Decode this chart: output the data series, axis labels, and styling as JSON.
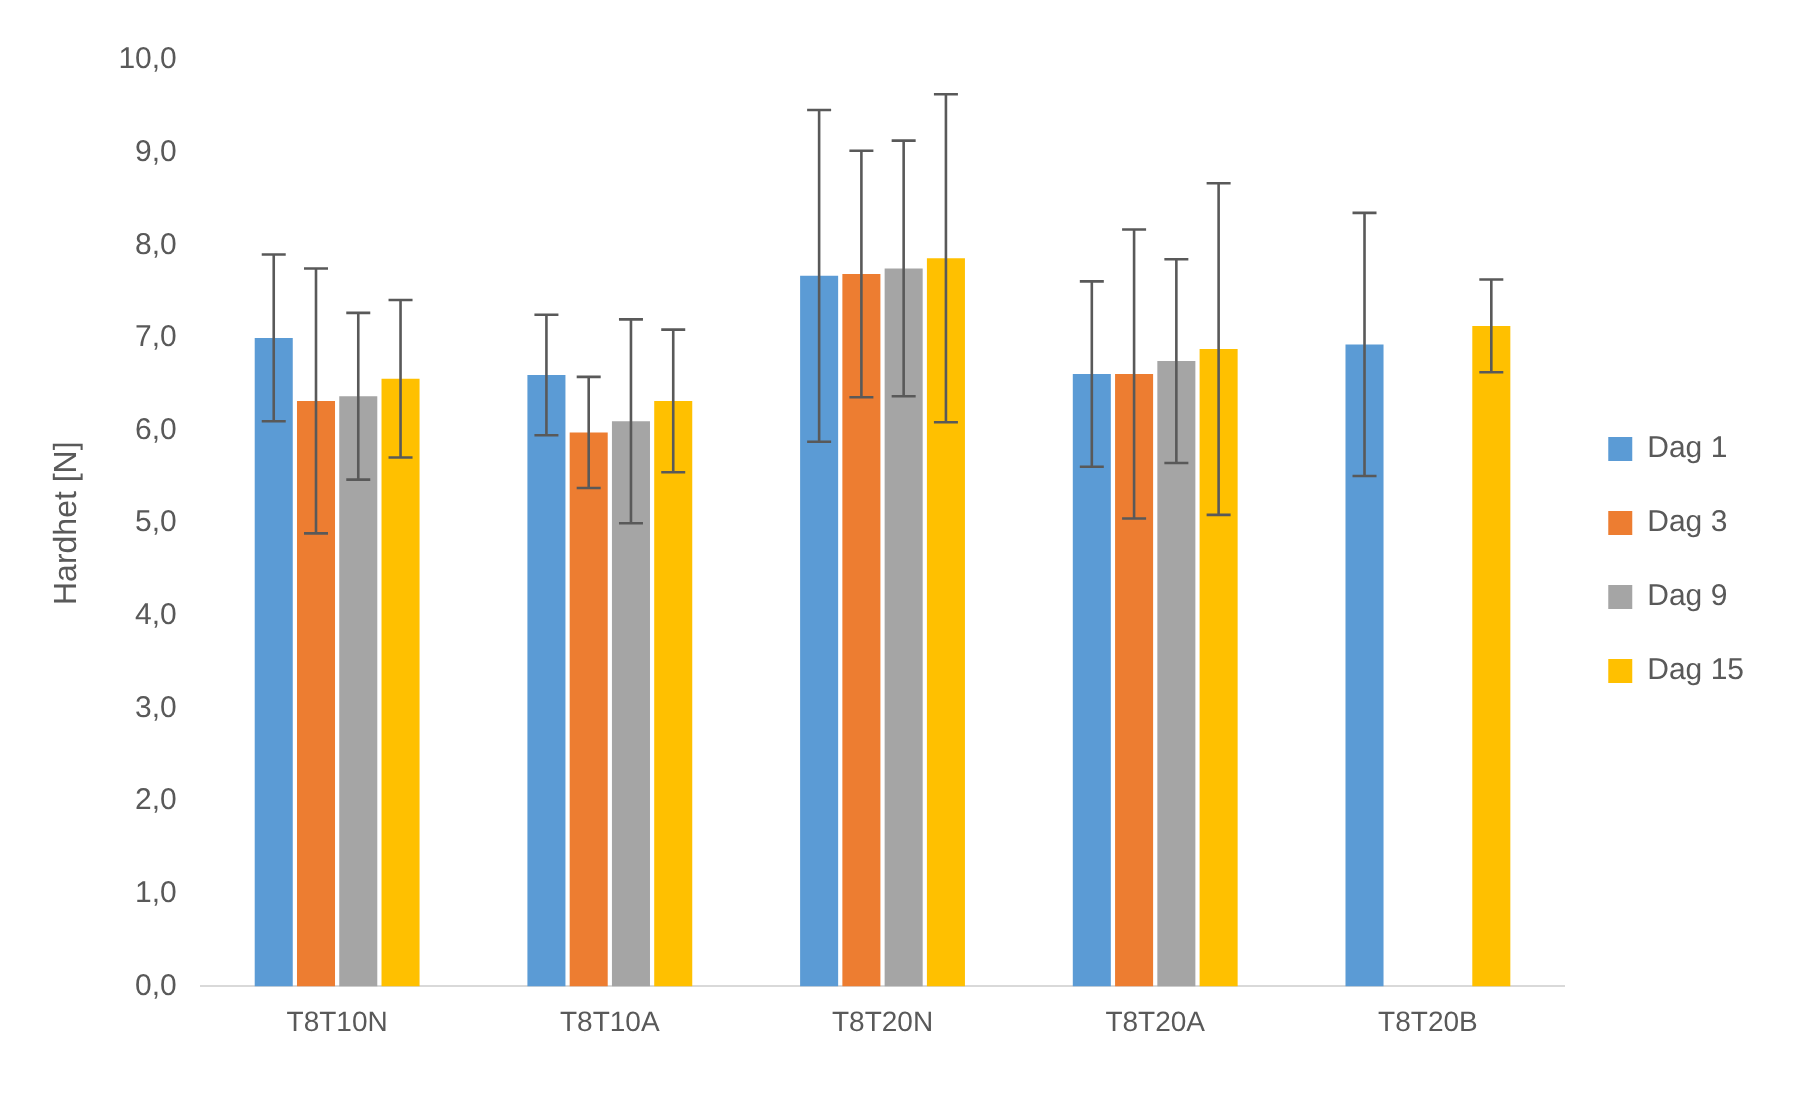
{
  "chart_data": {
    "type": "bar",
    "ylabel": "Hardhet [N]",
    "categories": [
      "T8T10N",
      "T8T10A",
      "T8T20N",
      "T8T20A",
      "T8T20B"
    ],
    "series": [
      {
        "name": "Dag 1",
        "color": "#5b9bd5",
        "values": [
          7.0,
          6.6,
          7.67,
          6.61,
          6.93
        ],
        "errors": [
          0.9,
          0.65,
          1.79,
          1.0,
          1.42
        ]
      },
      {
        "name": "Dag 3",
        "color": "#ed7d31",
        "values": [
          6.32,
          5.98,
          7.69,
          6.61,
          null
        ],
        "errors": [
          1.43,
          0.6,
          1.33,
          1.56,
          null
        ]
      },
      {
        "name": "Dag 9",
        "color": "#a5a5a5",
        "values": [
          6.37,
          6.1,
          7.75,
          6.75,
          null
        ],
        "errors": [
          0.9,
          1.1,
          1.38,
          1.1,
          null
        ]
      },
      {
        "name": "Dag 15",
        "color": "#ffc000",
        "values": [
          6.56,
          6.32,
          7.86,
          6.88,
          7.13
        ],
        "errors": [
          0.85,
          0.77,
          1.77,
          1.79,
          0.5
        ]
      }
    ],
    "ylim": [
      0,
      10
    ],
    "yticks": [
      {
        "value": 0,
        "label": "0,0"
      },
      {
        "value": 1,
        "label": "1,0"
      },
      {
        "value": 2,
        "label": "2,0"
      },
      {
        "value": 3,
        "label": "3,0"
      },
      {
        "value": 4,
        "label": "4,0"
      },
      {
        "value": 5,
        "label": "5,0"
      },
      {
        "value": 6,
        "label": "6,0"
      },
      {
        "value": 7,
        "label": "7,0"
      },
      {
        "value": 8,
        "label": "8,0"
      },
      {
        "value": 9,
        "label": "9,0"
      },
      {
        "value": 10,
        "label": "10,0"
      }
    ],
    "grid": false,
    "legend": "right"
  }
}
